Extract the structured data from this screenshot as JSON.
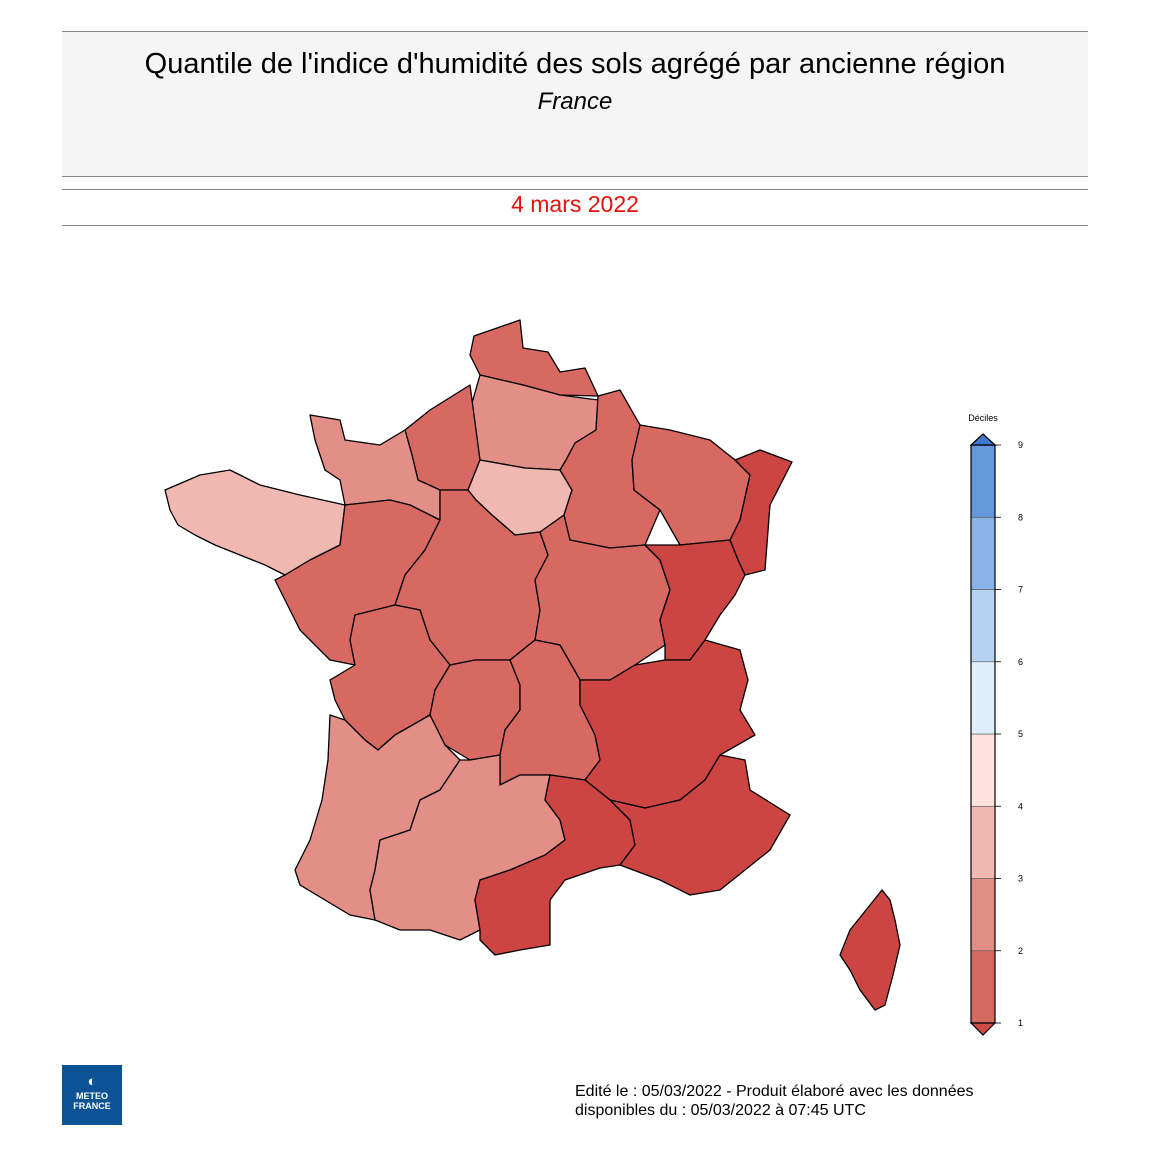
{
  "header": {
    "title": "Quantile de l'indice d'humidité des sols agrégé par ancienne région",
    "subtitle": "France"
  },
  "date": "4 mars 2022",
  "legend": {
    "title": "Déciles",
    "ticks": [
      "1",
      "2",
      "3",
      "4",
      "5",
      "6",
      "7",
      "8",
      "9"
    ],
    "colors": [
      "#d56a61",
      "#e28e86",
      "#f1b8b1",
      "#fde2de",
      "#deeefb",
      "#b5d2f0",
      "#8ab4e6",
      "#6497dc",
      "#4f86d3"
    ],
    "low_arrow_color": "#cf4a45",
    "high_arrow_color": "#3f78cc"
  },
  "region_colors": {
    "dark": "#cc4542",
    "medium": "#d86962",
    "light": "#e38f87",
    "pale": "#f1b8b2"
  },
  "logo": {
    "line1": "METEO",
    "line2": "FRANCE"
  },
  "footer": {
    "line1": "Edité le : 05/03/2022 - Produit élaboré avec les données",
    "line2": "disponibles du : 05/03/2022 à 07:45 UTC"
  }
}
